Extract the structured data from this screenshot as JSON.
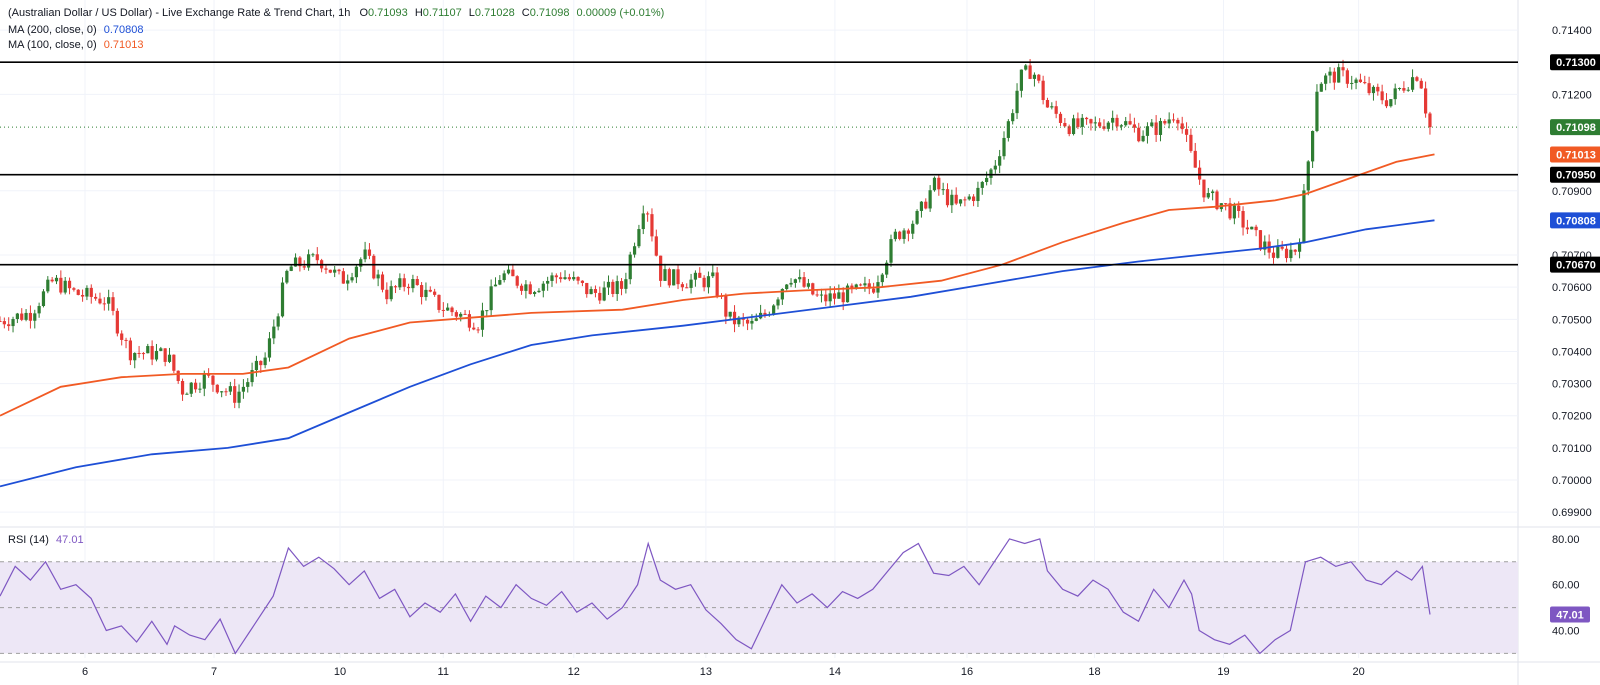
{
  "header": {
    "title": "(Australian Dollar / US Dollar) - Live Exchange Rate & Trend Chart, 1h",
    "ohlc": {
      "open_label": "O",
      "open": "0.71093",
      "high_label": "H",
      "high": "0.71107",
      "low_label": "L",
      "low": "0.71028",
      "close_label": "C",
      "close": "0.71098",
      "change": "0.00009 (+0.01%)"
    },
    "ma200_label": "MA (200, close, 0)",
    "ma200_value": "0.70808",
    "ma100_label": "MA (100, close, 0)",
    "ma100_value": "0.71013"
  },
  "rsi_panel": {
    "label": "RSI (14)",
    "value": "47.01"
  },
  "colors": {
    "up": "#26a69a",
    "up_candle": "#2e7d32",
    "down": "#e53935",
    "ma100": "#f15a24",
    "ma200": "#1e4fd6",
    "rsi": "#7e57c2",
    "rsi_band": "#ede7f6",
    "grid": "#f0f3fa",
    "level": "#000000"
  },
  "chart_data": [
    {
      "type": "candlestick",
      "title": "(Australian Dollar / US Dollar) - Live Exchange Rate & Trend Chart, 1h",
      "x_ticks": [
        "6",
        "7",
        "10",
        "11",
        "12",
        "13",
        "14",
        "16",
        "18",
        "19",
        "20"
      ],
      "y_ticks": [
        "0.71400",
        "0.71200",
        "0.70950",
        "0.70900",
        "0.70700",
        "0.70600",
        "0.70500",
        "0.70400",
        "0.70300",
        "0.70200",
        "0.70100",
        "0.70000",
        "0.69900"
      ],
      "ylim": [
        0.6986,
        0.7145
      ],
      "price_tags": [
        {
          "label": "0.71300",
          "value": 0.713,
          "style": "level"
        },
        {
          "label": "0.71098",
          "value": 0.71098,
          "style": "last"
        },
        {
          "label": "0.71013",
          "value": 0.71013,
          "style": "ma100"
        },
        {
          "label": "0.70950",
          "value": 0.7095,
          "style": "level"
        },
        {
          "label": "0.70808",
          "value": 0.70808,
          "style": "ma200"
        },
        {
          "label": "0.70670",
          "value": 0.7067,
          "style": "level"
        }
      ],
      "horizontal_levels": [
        0.713,
        0.7095,
        0.7067
      ],
      "last_price": 0.71098,
      "close_path": [
        [
          0,
          0.70495
        ],
        [
          0.02,
          0.7052
        ],
        [
          0.035,
          0.7062
        ],
        [
          0.05,
          0.7058
        ],
        [
          0.07,
          0.7056
        ],
        [
          0.085,
          0.704
        ],
        [
          0.11,
          0.7039
        ],
        [
          0.12,
          0.7028
        ],
        [
          0.135,
          0.7032
        ],
        [
          0.155,
          0.7026
        ],
        [
          0.175,
          0.7038
        ],
        [
          0.19,
          0.7066
        ],
        [
          0.21,
          0.7069
        ],
        [
          0.225,
          0.7062
        ],
        [
          0.24,
          0.707
        ],
        [
          0.255,
          0.7058
        ],
        [
          0.27,
          0.7062
        ],
        [
          0.29,
          0.7054
        ],
        [
          0.315,
          0.7049
        ],
        [
          0.33,
          0.7064
        ],
        [
          0.35,
          0.706
        ],
        [
          0.37,
          0.7064
        ],
        [
          0.39,
          0.7058
        ],
        [
          0.41,
          0.706
        ],
        [
          0.425,
          0.7088
        ],
        [
          0.435,
          0.7064
        ],
        [
          0.45,
          0.7062
        ],
        [
          0.47,
          0.7062
        ],
        [
          0.48,
          0.705
        ],
        [
          0.495,
          0.7048
        ],
        [
          0.505,
          0.7052
        ],
        [
          0.52,
          0.7064
        ],
        [
          0.54,
          0.7056
        ],
        [
          0.56,
          0.7058
        ],
        [
          0.575,
          0.706
        ],
        [
          0.59,
          0.7076
        ],
        [
          0.605,
          0.7082
        ],
        [
          0.615,
          0.7092
        ],
        [
          0.63,
          0.7085
        ],
        [
          0.645,
          0.709
        ],
        [
          0.655,
          0.7098
        ],
        [
          0.665,
          0.7112
        ],
        [
          0.672,
          0.7125
        ],
        [
          0.68,
          0.7128
        ],
        [
          0.69,
          0.7116
        ],
        [
          0.705,
          0.711
        ],
        [
          0.72,
          0.711
        ],
        [
          0.735,
          0.7113
        ],
        [
          0.75,
          0.7108
        ],
        [
          0.765,
          0.711
        ],
        [
          0.775,
          0.7115
        ],
        [
          0.785,
          0.71
        ],
        [
          0.795,
          0.7088
        ],
        [
          0.805,
          0.7086
        ],
        [
          0.815,
          0.7082
        ],
        [
          0.83,
          0.7074
        ],
        [
          0.84,
          0.707
        ],
        [
          0.855,
          0.7072
        ],
        [
          0.862,
          0.71
        ],
        [
          0.868,
          0.7124
        ],
        [
          0.88,
          0.7126
        ],
        [
          0.89,
          0.7125
        ],
        [
          0.905,
          0.712
        ],
        [
          0.915,
          0.7118
        ],
        [
          0.925,
          0.7123
        ],
        [
          0.935,
          0.7127
        ],
        [
          0.942,
          0.7108
        ]
      ],
      "ma100_path": [
        [
          0,
          0.702
        ],
        [
          0.04,
          0.7029
        ],
        [
          0.08,
          0.7032
        ],
        [
          0.12,
          0.7033
        ],
        [
          0.16,
          0.7033
        ],
        [
          0.19,
          0.7035
        ],
        [
          0.23,
          0.7044
        ],
        [
          0.27,
          0.7049
        ],
        [
          0.31,
          0.70505
        ],
        [
          0.35,
          0.7052
        ],
        [
          0.41,
          0.7053
        ],
        [
          0.45,
          0.7056
        ],
        [
          0.49,
          0.7058
        ],
        [
          0.53,
          0.7059
        ],
        [
          0.58,
          0.706
        ],
        [
          0.62,
          0.7062
        ],
        [
          0.66,
          0.7067
        ],
        [
          0.7,
          0.7074
        ],
        [
          0.74,
          0.708
        ],
        [
          0.77,
          0.7084
        ],
        [
          0.8,
          0.7085
        ],
        [
          0.84,
          0.7087
        ],
        [
          0.86,
          0.7089
        ],
        [
          0.89,
          0.7094
        ],
        [
          0.92,
          0.7099
        ],
        [
          0.945,
          0.71013
        ]
      ],
      "ma200_path": [
        [
          0,
          0.6998
        ],
        [
          0.05,
          0.7004
        ],
        [
          0.1,
          0.7008
        ],
        [
          0.15,
          0.701
        ],
        [
          0.19,
          0.7013
        ],
        [
          0.23,
          0.7021
        ],
        [
          0.27,
          0.7029
        ],
        [
          0.31,
          0.7036
        ],
        [
          0.35,
          0.7042
        ],
        [
          0.39,
          0.7045
        ],
        [
          0.45,
          0.7048
        ],
        [
          0.5,
          0.7051
        ],
        [
          0.55,
          0.7054
        ],
        [
          0.6,
          0.7057
        ],
        [
          0.65,
          0.7061
        ],
        [
          0.7,
          0.7065
        ],
        [
          0.75,
          0.7068
        ],
        [
          0.79,
          0.707
        ],
        [
          0.83,
          0.7072
        ],
        [
          0.86,
          0.7074
        ],
        [
          0.9,
          0.7078
        ],
        [
          0.945,
          0.70808
        ]
      ]
    },
    {
      "type": "line",
      "title": "RSI (14)",
      "y_ticks": [
        "80.00",
        "60.00",
        "40.00"
      ],
      "ylim": [
        28,
        83
      ],
      "bands": [
        30,
        70
      ],
      "midline": 50,
      "last_value": 47.01,
      "values": [
        [
          0,
          55
        ],
        [
          0.01,
          68
        ],
        [
          0.02,
          62
        ],
        [
          0.03,
          70
        ],
        [
          0.04,
          58
        ],
        [
          0.05,
          60
        ],
        [
          0.06,
          54
        ],
        [
          0.07,
          40
        ],
        [
          0.08,
          42
        ],
        [
          0.09,
          35
        ],
        [
          0.1,
          44
        ],
        [
          0.11,
          34
        ],
        [
          0.115,
          42
        ],
        [
          0.125,
          38
        ],
        [
          0.135,
          36
        ],
        [
          0.145,
          45
        ],
        [
          0.155,
          30
        ],
        [
          0.165,
          40
        ],
        [
          0.18,
          55
        ],
        [
          0.19,
          76
        ],
        [
          0.2,
          68
        ],
        [
          0.21,
          72
        ],
        [
          0.22,
          67
        ],
        [
          0.23,
          60
        ],
        [
          0.24,
          66
        ],
        [
          0.25,
          54
        ],
        [
          0.26,
          58
        ],
        [
          0.27,
          46
        ],
        [
          0.28,
          52
        ],
        [
          0.29,
          48
        ],
        [
          0.3,
          56
        ],
        [
          0.31,
          44
        ],
        [
          0.32,
          55
        ],
        [
          0.33,
          50
        ],
        [
          0.34,
          60
        ],
        [
          0.35,
          54
        ],
        [
          0.36,
          51
        ],
        [
          0.37,
          57
        ],
        [
          0.38,
          48
        ],
        [
          0.39,
          52
        ],
        [
          0.4,
          45
        ],
        [
          0.41,
          50
        ],
        [
          0.42,
          60
        ],
        [
          0.427,
          78
        ],
        [
          0.435,
          62
        ],
        [
          0.445,
          58
        ],
        [
          0.455,
          60
        ],
        [
          0.465,
          49
        ],
        [
          0.475,
          43
        ],
        [
          0.485,
          36
        ],
        [
          0.495,
          32
        ],
        [
          0.505,
          46
        ],
        [
          0.515,
          60
        ],
        [
          0.525,
          52
        ],
        [
          0.535,
          56
        ],
        [
          0.545,
          50
        ],
        [
          0.555,
          57
        ],
        [
          0.565,
          54
        ],
        [
          0.575,
          58
        ],
        [
          0.585,
          66
        ],
        [
          0.595,
          74
        ],
        [
          0.605,
          78
        ],
        [
          0.615,
          65
        ],
        [
          0.625,
          64
        ],
        [
          0.635,
          68
        ],
        [
          0.645,
          60
        ],
        [
          0.655,
          70
        ],
        [
          0.665,
          80
        ],
        [
          0.675,
          78
        ],
        [
          0.685,
          80
        ],
        [
          0.69,
          66
        ],
        [
          0.7,
          58
        ],
        [
          0.71,
          55
        ],
        [
          0.72,
          62
        ],
        [
          0.73,
          58
        ],
        [
          0.74,
          48
        ],
        [
          0.75,
          44
        ],
        [
          0.76,
          58
        ],
        [
          0.77,
          50
        ],
        [
          0.78,
          62
        ],
        [
          0.785,
          56
        ],
        [
          0.79,
          40
        ],
        [
          0.8,
          36
        ],
        [
          0.81,
          34
        ],
        [
          0.82,
          38
        ],
        [
          0.83,
          30
        ],
        [
          0.84,
          36
        ],
        [
          0.85,
          40
        ],
        [
          0.86,
          70
        ],
        [
          0.87,
          72
        ],
        [
          0.88,
          68
        ],
        [
          0.89,
          70
        ],
        [
          0.9,
          62
        ],
        [
          0.91,
          60
        ],
        [
          0.92,
          66
        ],
        [
          0.93,
          62
        ],
        [
          0.937,
          68
        ],
        [
          0.942,
          47
        ]
      ]
    }
  ]
}
